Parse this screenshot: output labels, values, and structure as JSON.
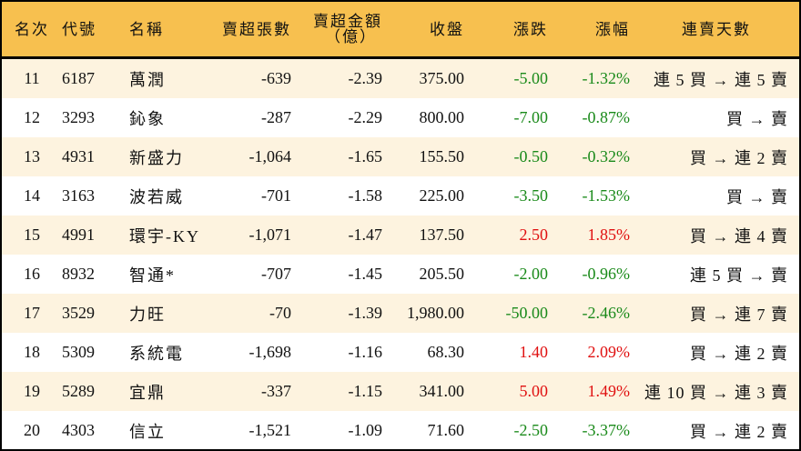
{
  "headers": [
    "名次",
    "代號",
    "名稱",
    "賣超張數",
    "賣超金額",
    "（億）",
    "收盤",
    "漲跌",
    "漲幅",
    "連賣天數"
  ],
  "colors": {
    "header_bg": "#F7C04F",
    "odd_row_bg": "#FDF3DF",
    "up": "#e01010",
    "down": "#1a8a1a"
  },
  "rows": [
    {
      "rank": "11",
      "code": "6187",
      "name": "萬潤",
      "shares": "-639",
      "amount": "-2.39",
      "close": "375.00",
      "change": "-5.00",
      "pct": "-1.32%",
      "streak": "連 5 買 → 連 5 賣",
      "dir": "neg"
    },
    {
      "rank": "12",
      "code": "3293",
      "name": "鈊象",
      "shares": "-287",
      "amount": "-2.29",
      "close": "800.00",
      "change": "-7.00",
      "pct": "-0.87%",
      "streak": "買 → 賣",
      "dir": "neg"
    },
    {
      "rank": "13",
      "code": "4931",
      "name": "新盛力",
      "shares": "-1,064",
      "amount": "-1.65",
      "close": "155.50",
      "change": "-0.50",
      "pct": "-0.32%",
      "streak": "買 → 連 2 賣",
      "dir": "neg"
    },
    {
      "rank": "14",
      "code": "3163",
      "name": "波若威",
      "shares": "-701",
      "amount": "-1.58",
      "close": "225.00",
      "change": "-3.50",
      "pct": "-1.53%",
      "streak": "買 → 賣",
      "dir": "neg"
    },
    {
      "rank": "15",
      "code": "4991",
      "name": "環宇-KY",
      "shares": "-1,071",
      "amount": "-1.47",
      "close": "137.50",
      "change": "2.50",
      "pct": "1.85%",
      "streak": "買 → 連 4 賣",
      "dir": "pos"
    },
    {
      "rank": "16",
      "code": "8932",
      "name": "智通*",
      "shares": "-707",
      "amount": "-1.45",
      "close": "205.50",
      "change": "-2.00",
      "pct": "-0.96%",
      "streak": "連 5 買 → 賣",
      "dir": "neg"
    },
    {
      "rank": "17",
      "code": "3529",
      "name": "力旺",
      "shares": "-70",
      "amount": "-1.39",
      "close": "1,980.00",
      "change": "-50.00",
      "pct": "-2.46%",
      "streak": "買 → 連 7 賣",
      "dir": "neg"
    },
    {
      "rank": "18",
      "code": "5309",
      "name": "系統電",
      "shares": "-1,698",
      "amount": "-1.16",
      "close": "68.30",
      "change": "1.40",
      "pct": "2.09%",
      "streak": "買 → 連 2 賣",
      "dir": "pos"
    },
    {
      "rank": "19",
      "code": "5289",
      "name": "宜鼎",
      "shares": "-337",
      "amount": "-1.15",
      "close": "341.00",
      "change": "5.00",
      "pct": "1.49%",
      "streak": "連 10 買 → 連 3 賣",
      "dir": "pos"
    },
    {
      "rank": "20",
      "code": "4303",
      "name": "信立",
      "shares": "-1,521",
      "amount": "-1.09",
      "close": "71.60",
      "change": "-2.50",
      "pct": "-3.37%",
      "streak": "買 → 連 2 賣",
      "dir": "neg"
    }
  ]
}
